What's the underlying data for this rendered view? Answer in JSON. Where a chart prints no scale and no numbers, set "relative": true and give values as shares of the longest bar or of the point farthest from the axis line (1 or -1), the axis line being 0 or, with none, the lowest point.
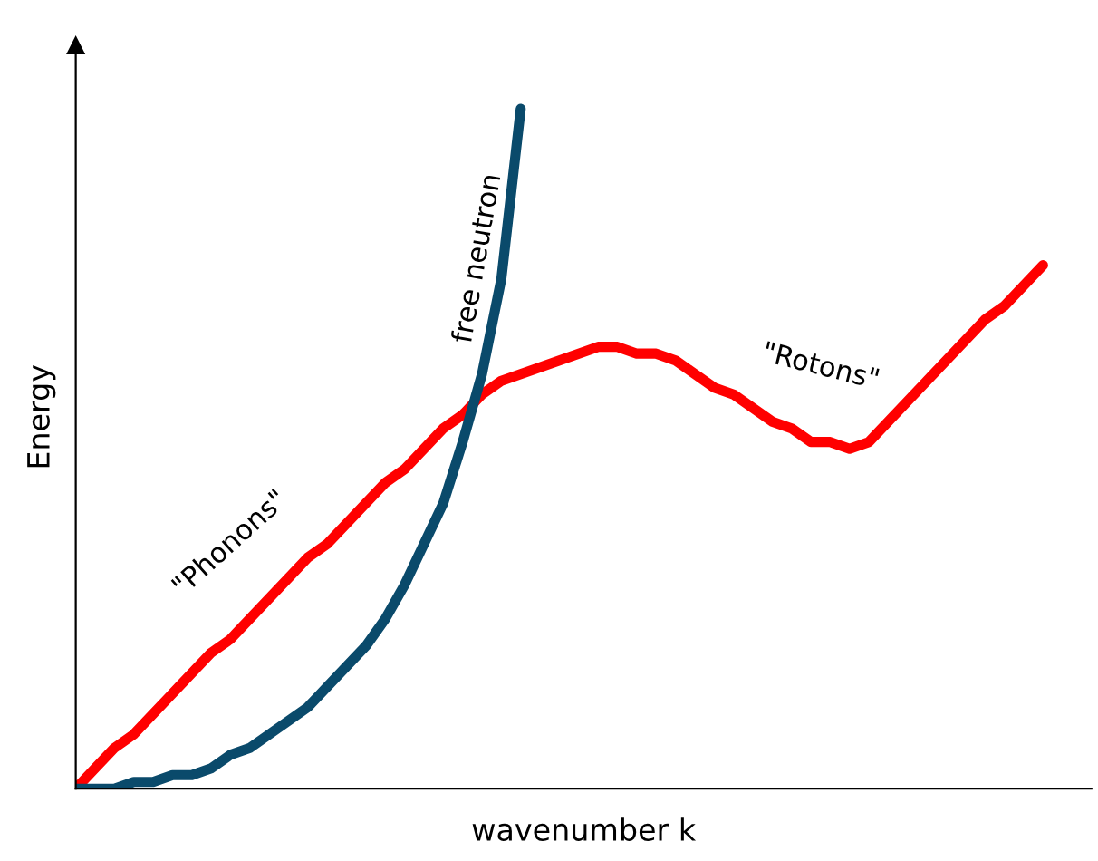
{
  "chart_data": {
    "type": "line",
    "relative": true,
    "xlabel": "wavenumber k",
    "ylabel": "Energy",
    "categories": [
      null,
      null,
      null,
      null,
      null,
      null,
      null,
      null,
      null,
      null,
      null,
      null,
      null,
      null,
      null,
      null,
      null,
      null,
      null,
      null,
      null,
      null,
      null,
      null,
      null,
      null,
      null,
      null,
      null,
      null,
      null,
      null,
      null,
      null,
      null,
      null,
      null,
      null,
      null,
      null,
      null,
      null,
      null,
      null,
      null,
      null,
      null,
      null,
      null,
      null,
      null
    ],
    "series": [
      {
        "color": "#ff0000",
        "values": [
          0,
          0.03,
          0.06,
          0.08,
          0.11,
          0.14,
          0.17,
          0.2,
          0.22,
          0.25,
          0.28,
          0.31,
          0.34,
          0.36,
          0.39,
          0.42,
          0.45,
          0.47,
          0.5,
          0.53,
          0.55,
          0.58,
          0.6,
          0.61,
          0.62,
          0.63,
          0.64,
          0.65,
          0.65,
          0.64,
          0.64,
          0.63,
          0.61,
          0.59,
          0.58,
          0.56,
          0.54,
          0.53,
          0.51,
          0.51,
          0.5,
          0.51,
          0.54,
          0.57,
          0.6,
          0.63,
          0.66,
          0.69,
          0.71,
          0.74,
          0.77
        ]
      },
      {
        "name": "free neutron",
        "color": "#0a4a6b",
        "values": [
          0,
          0.0,
          0.0,
          0.01,
          0.01,
          0.02,
          0.02,
          0.03,
          0.05,
          0.06,
          0.08,
          0.1,
          0.12,
          0.15,
          0.18,
          0.21,
          0.25,
          0.3,
          0.36,
          0.42,
          0.51,
          0.61,
          0.75,
          1.0,
          null,
          null,
          null,
          null,
          null,
          null,
          null,
          null,
          null,
          null,
          null,
          null,
          null,
          null,
          null,
          null,
          null,
          null,
          null,
          null,
          null,
          null,
          null,
          null,
          null,
          null,
          null
        ]
      }
    ],
    "annotations": [
      "\"Phonons\"",
      "\"Rotons\""
    ],
    "grid": false,
    "legend": false,
    "marker": "none",
    "line_style": "solid"
  }
}
